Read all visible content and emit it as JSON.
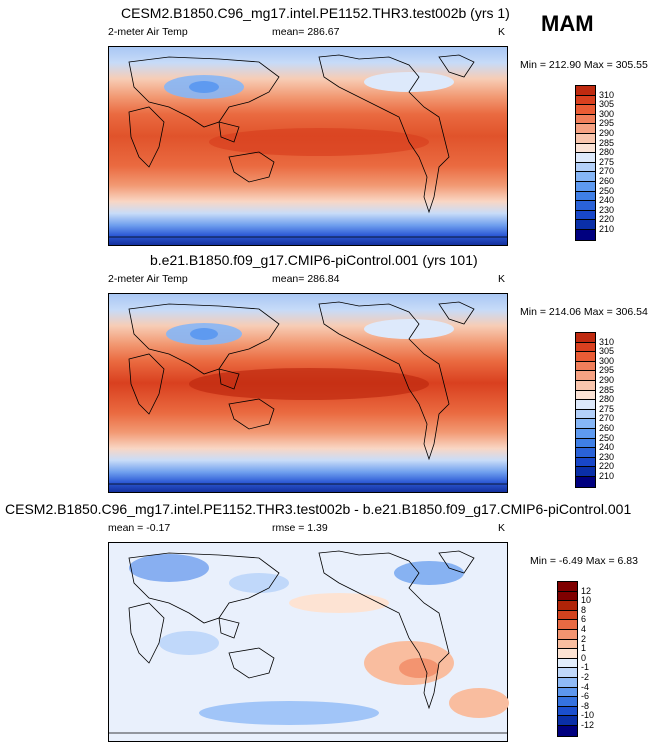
{
  "season": "MAM",
  "palettes": {
    "abs": [
      "#00007f",
      "#0a2fa8",
      "#1847c9",
      "#2a62d8",
      "#3f7fe6",
      "#5e9af0",
      "#86b6f6",
      "#b3d0f9",
      "#dde9fb",
      "#fbe3d6",
      "#f9c6ae",
      "#f6a283",
      "#f17f5b",
      "#ea5c35",
      "#d9401f",
      "#bf2a10",
      "#a01507",
      "#7f0000"
    ],
    "diff": [
      "#00007f",
      "#0a2fa8",
      "#1b4fce",
      "#3572df",
      "#5d97ee",
      "#8fbaf6",
      "#c0d8fa",
      "#e3eefc",
      "#fde3d3",
      "#f9bd9f",
      "#f39470",
      "#e86a43",
      "#d3431f",
      "#b02408",
      "#7f0000"
    ]
  },
  "chart_data": [
    {
      "type": "heatmap",
      "title": "CESM2.B1850.C96_mg17.intel.PE1152.THR3.test002b (yrs 1)",
      "left_label": "2-meter Air Temp",
      "center_label": "mean= 286.67",
      "units": "K",
      "minmax": "Min = 212.90 Max = 305.55",
      "colorbar_levels": [
        "310",
        "305",
        "300",
        "295",
        "290",
        "285",
        "280",
        "275",
        "270",
        "260",
        "250",
        "240",
        "230",
        "220",
        "210"
      ]
    },
    {
      "type": "heatmap",
      "title": "b.e21.B1850.f09_g17.CMIP6-piControl.001 (yrs 101)",
      "left_label": "2-meter Air Temp",
      "center_label": "mean= 286.84",
      "units": "K",
      "minmax": "Min = 214.06 Max = 306.54",
      "colorbar_levels": [
        "310",
        "305",
        "300",
        "295",
        "290",
        "285",
        "280",
        "275",
        "270",
        "260",
        "250",
        "240",
        "230",
        "220",
        "210"
      ]
    },
    {
      "type": "heatmap",
      "title": "CESM2.B1850.C96_mg17.intel.PE1152.THR3.test002b - b.e21.B1850.f09_g17.CMIP6-piControl.001",
      "left_label": "mean =  -0.17",
      "center_label": "rmse =   1.39",
      "units": "K",
      "minmax": "Min =  -6.49 Max =   6.83",
      "colorbar_levels": [
        "12",
        "10",
        "8",
        "6",
        "4",
        "2",
        "1",
        "0",
        "-1",
        "-2",
        "-4",
        "-6",
        "-8",
        "-10",
        "-12"
      ]
    }
  ]
}
